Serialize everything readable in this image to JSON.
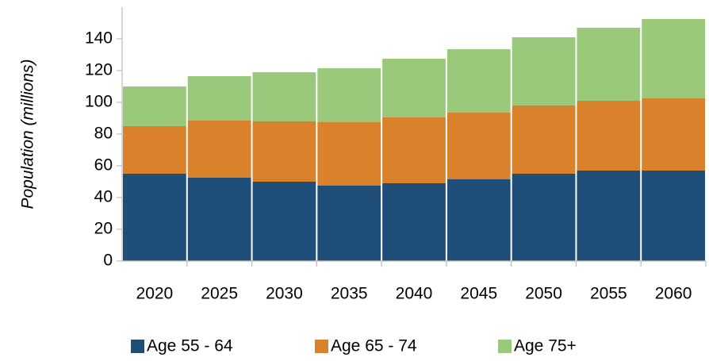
{
  "chart_data": {
    "type": "stacked_bar",
    "y_label": "Population (millions)",
    "categories": [
      "2020",
      "2025",
      "2030",
      "2035",
      "2040",
      "2045",
      "2050",
      "2055",
      "2060"
    ],
    "series": [
      {
        "name": "Age 55 - 64",
        "color": "#1f4e79",
        "values": [
          55,
          52.5,
          50,
          47.5,
          49,
          51.5,
          55,
          57,
          57
        ]
      },
      {
        "name": "Age 65 - 74",
        "color": "#d9822b",
        "values": [
          30,
          36,
          38,
          40,
          41.5,
          42,
          43,
          44,
          45.5
        ]
      },
      {
        "name": "Age 75+",
        "color": "#9bc97c",
        "values": [
          25,
          28,
          31,
          34,
          37,
          40,
          43,
          46,
          50
        ]
      }
    ],
    "ylim": [
      0,
      160
    ],
    "yticks": [
      0,
      20,
      40,
      60,
      80,
      100,
      120,
      140
    ],
    "legend": "bottom"
  }
}
